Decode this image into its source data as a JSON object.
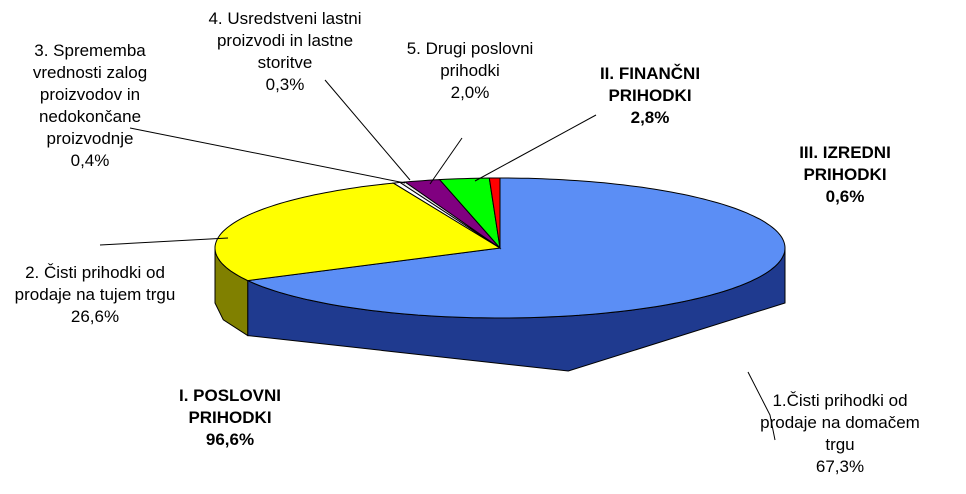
{
  "chart_data": {
    "type": "pie3d",
    "categories": [
      "1.Čisti prihodki od prodaje na domačem trgu",
      "2. Čisti prihodki od prodaje na tujem trgu",
      "3. Sprememba vrednosti zalog proizvodov in nedokončane proizvodnje",
      "4. Usredstveni lastni proizvodi in lastne storitve",
      "5. Drugi poslovni prihodki",
      "II. FINANČNI PRIHODKI",
      "III. IZREDNI PRIHODKI"
    ],
    "values": [
      67.3,
      26.6,
      0.4,
      0.3,
      2.0,
      2.8,
      0.6
    ],
    "value_labels": [
      "67,3%",
      "26,6%",
      "0,4%",
      "0,3%",
      "2,0%",
      "2,8%",
      "0,6%"
    ],
    "colors": [
      "#5b8ef5",
      "#ffff00",
      "#ffffff",
      "#f0f0f0",
      "#800080",
      "#00ff00",
      "#ff0000"
    ],
    "side_colors": [
      "#1f3a8f",
      "#808000",
      "#bbbbbb",
      "#aaaaaa",
      "#400040",
      "#008000",
      "#800000"
    ],
    "annotation": {
      "label": "I. POSLOVNI PRIHODKI",
      "value": 96.6,
      "value_label": "96,6%"
    }
  }
}
